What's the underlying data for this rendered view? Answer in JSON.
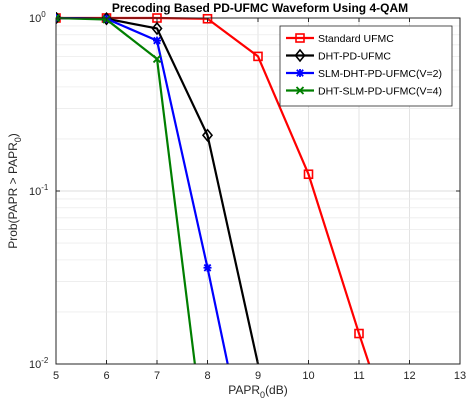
{
  "chart_data": {
    "type": "line",
    "title": "Precoding Based PD-UFMC Waveform Using 4-QAM",
    "xlabel": "PAPR",
    "xlabel_sub": "0",
    "xlabel_suffix": "(dB)",
    "ylabel": "Prob(PAPR > PAPR",
    "ylabel_sub": "0",
    "ylabel_suffix": ")",
    "xlim": [
      5,
      13
    ],
    "ylim": [
      0.01,
      1
    ],
    "yscale": "log",
    "grid": true,
    "legend_position": "top-right",
    "x_ticks": [
      "5",
      "6",
      "7",
      "8",
      "9",
      "10",
      "11",
      "12",
      "13"
    ],
    "y_ticks": [
      {
        "value": 1,
        "base": "10",
        "exp": "0"
      },
      {
        "value": 0.1,
        "base": "10",
        "exp": "-1"
      },
      {
        "value": 0.01,
        "base": "10",
        "exp": "-2"
      }
    ],
    "series": [
      {
        "name": "Standard UFMC",
        "color": "#ff0000",
        "marker": "square",
        "x": [
          5,
          6,
          7,
          8,
          9,
          10,
          11,
          11.2
        ],
        "y": [
          1,
          1,
          1,
          0.99,
          0.6,
          0.125,
          0.015,
          0.01
        ],
        "marker_x": [
          5,
          6,
          7,
          8,
          9,
          10,
          11
        ]
      },
      {
        "name": "DHT-PD-UFMC",
        "color": "#000000",
        "marker": "diamond",
        "x": [
          5,
          6,
          7,
          8,
          9
        ],
        "y": [
          1,
          0.99,
          0.87,
          0.21,
          0.01
        ],
        "marker_x": [
          5,
          6,
          7,
          8
        ]
      },
      {
        "name": "SLM-DHT-PD-UFMC(V=2)",
        "color": "#0000ff",
        "marker": "star",
        "x": [
          5,
          6,
          7,
          8,
          8.4
        ],
        "y": [
          1,
          0.99,
          0.74,
          0.036,
          0.01
        ],
        "marker_x": [
          5,
          6,
          7,
          8
        ]
      },
      {
        "name": "DHT-SLM-PD-UFMC(V=4)",
        "color": "#007f00",
        "marker": "x",
        "x": [
          5,
          6,
          7,
          7.75
        ],
        "y": [
          1,
          0.98,
          0.58,
          0.01
        ],
        "marker_x": [
          5,
          6,
          7
        ]
      }
    ]
  }
}
